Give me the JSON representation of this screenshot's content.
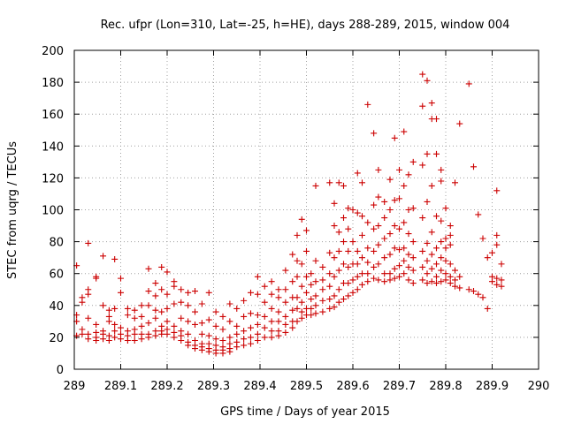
{
  "chart_data": {
    "type": "scatter",
    "title": "Rec. ufpr (Lon=310, Lat=-25, h=HE), days 288-289, 2015, window 004",
    "xlabel": "GPS time / Days of year 2015",
    "ylabel": "STEC from uqrg / TECUs",
    "xlim": [
      289,
      290
    ],
    "ylim": [
      0,
      200
    ],
    "x_ticks": [
      "289",
      "289.1",
      "289.2",
      "289.3",
      "289.4",
      "289.5",
      "289.6",
      "289.7",
      "289.8",
      "289.9",
      "290"
    ],
    "y_ticks": [
      "0",
      "20",
      "40",
      "60",
      "80",
      "100",
      "120",
      "140",
      "160",
      "180",
      "200"
    ],
    "grid": true,
    "marker": "plus",
    "color": "#cc0000",
    "points": [
      [
        289.005,
        65
      ],
      [
        289.005,
        34
      ],
      [
        289.005,
        30
      ],
      [
        289.005,
        21
      ],
      [
        289.017,
        45
      ],
      [
        289.017,
        42
      ],
      [
        289.017,
        25
      ],
      [
        289.017,
        22
      ],
      [
        289.03,
        79
      ],
      [
        289.03,
        50
      ],
      [
        289.03,
        47
      ],
      [
        289.03,
        32
      ],
      [
        289.03,
        22
      ],
      [
        289.03,
        19
      ],
      [
        289.047,
        58
      ],
      [
        289.047,
        57
      ],
      [
        289.047,
        28
      ],
      [
        289.047,
        23
      ],
      [
        289.047,
        20
      ],
      [
        289.047,
        18
      ],
      [
        289.062,
        71
      ],
      [
        289.062,
        40
      ],
      [
        289.062,
        24
      ],
      [
        289.062,
        22
      ],
      [
        289.062,
        19
      ],
      [
        289.075,
        37
      ],
      [
        289.075,
        33
      ],
      [
        289.075,
        30
      ],
      [
        289.075,
        21
      ],
      [
        289.075,
        18
      ],
      [
        289.087,
        69
      ],
      [
        289.087,
        38
      ],
      [
        289.087,
        28
      ],
      [
        289.087,
        24
      ],
      [
        289.087,
        20
      ],
      [
        289.1,
        57
      ],
      [
        289.1,
        48
      ],
      [
        289.1,
        26
      ],
      [
        289.1,
        22
      ],
      [
        289.1,
        19
      ],
      [
        289.115,
        38
      ],
      [
        289.115,
        34
      ],
      [
        289.115,
        24
      ],
      [
        289.115,
        21
      ],
      [
        289.115,
        18
      ],
      [
        289.13,
        37
      ],
      [
        289.13,
        32
      ],
      [
        289.13,
        25
      ],
      [
        289.13,
        22
      ],
      [
        289.13,
        18
      ],
      [
        289.145,
        40
      ],
      [
        289.145,
        33
      ],
      [
        289.145,
        27
      ],
      [
        289.145,
        22
      ],
      [
        289.145,
        19
      ],
      [
        289.16,
        63
      ],
      [
        289.16,
        49
      ],
      [
        289.16,
        40
      ],
      [
        289.16,
        29
      ],
      [
        289.16,
        22
      ],
      [
        289.16,
        20
      ],
      [
        289.175,
        54
      ],
      [
        289.175,
        46
      ],
      [
        289.175,
        37
      ],
      [
        289.175,
        32
      ],
      [
        289.175,
        24
      ],
      [
        289.175,
        21
      ],
      [
        289.188,
        64
      ],
      [
        289.188,
        50
      ],
      [
        289.188,
        36
      ],
      [
        289.188,
        27
      ],
      [
        289.188,
        24
      ],
      [
        289.188,
        22
      ],
      [
        289.2,
        61
      ],
      [
        289.2,
        47
      ],
      [
        289.2,
        38
      ],
      [
        289.2,
        30
      ],
      [
        289.2,
        25
      ],
      [
        289.2,
        22
      ],
      [
        289.215,
        55
      ],
      [
        289.215,
        52
      ],
      [
        289.215,
        41
      ],
      [
        289.215,
        27
      ],
      [
        289.215,
        23
      ],
      [
        289.215,
        20
      ],
      [
        289.23,
        50
      ],
      [
        289.23,
        42
      ],
      [
        289.23,
        32
      ],
      [
        289.23,
        24
      ],
      [
        289.23,
        21
      ],
      [
        289.23,
        18
      ],
      [
        289.245,
        48
      ],
      [
        289.245,
        40
      ],
      [
        289.245,
        30
      ],
      [
        289.245,
        22
      ],
      [
        289.245,
        17
      ],
      [
        289.245,
        15
      ],
      [
        289.26,
        49
      ],
      [
        289.26,
        36
      ],
      [
        289.26,
        28
      ],
      [
        289.26,
        18
      ],
      [
        289.26,
        15
      ],
      [
        289.26,
        13
      ],
      [
        289.275,
        41
      ],
      [
        289.275,
        29
      ],
      [
        289.275,
        22
      ],
      [
        289.275,
        16
      ],
      [
        289.275,
        14
      ],
      [
        289.275,
        12
      ],
      [
        289.29,
        48
      ],
      [
        289.29,
        31
      ],
      [
        289.29,
        21
      ],
      [
        289.29,
        16
      ],
      [
        289.29,
        13
      ],
      [
        289.29,
        11
      ],
      [
        289.305,
        36
      ],
      [
        289.305,
        27
      ],
      [
        289.305,
        19
      ],
      [
        289.305,
        15
      ],
      [
        289.305,
        12
      ],
      [
        289.305,
        10
      ],
      [
        289.32,
        33
      ],
      [
        289.32,
        25
      ],
      [
        289.32,
        18
      ],
      [
        289.32,
        14
      ],
      [
        289.32,
        12
      ],
      [
        289.32,
        10
      ],
      [
        289.335,
        41
      ],
      [
        289.335,
        30
      ],
      [
        289.335,
        20
      ],
      [
        289.335,
        16
      ],
      [
        289.335,
        13
      ],
      [
        289.335,
        11
      ],
      [
        289.35,
        38
      ],
      [
        289.35,
        27
      ],
      [
        289.35,
        22
      ],
      [
        289.35,
        17
      ],
      [
        289.35,
        14
      ],
      [
        289.365,
        43
      ],
      [
        289.365,
        33
      ],
      [
        289.365,
        24
      ],
      [
        289.365,
        19
      ],
      [
        289.365,
        15
      ],
      [
        289.38,
        48
      ],
      [
        289.38,
        35
      ],
      [
        289.38,
        26
      ],
      [
        289.38,
        20
      ],
      [
        289.38,
        16
      ],
      [
        289.395,
        58
      ],
      [
        289.395,
        47
      ],
      [
        289.395,
        34
      ],
      [
        289.395,
        28
      ],
      [
        289.395,
        22
      ],
      [
        289.395,
        18
      ],
      [
        289.41,
        52
      ],
      [
        289.41,
        42
      ],
      [
        289.41,
        33
      ],
      [
        289.41,
        26
      ],
      [
        289.41,
        20
      ],
      [
        289.425,
        55
      ],
      [
        289.425,
        47
      ],
      [
        289.425,
        38
      ],
      [
        289.425,
        30
      ],
      [
        289.425,
        24
      ],
      [
        289.425,
        20
      ],
      [
        289.44,
        50
      ],
      [
        289.44,
        45
      ],
      [
        289.44,
        36
      ],
      [
        289.44,
        30
      ],
      [
        289.44,
        24
      ],
      [
        289.44,
        21
      ],
      [
        289.455,
        62
      ],
      [
        289.455,
        50
      ],
      [
        289.455,
        42
      ],
      [
        289.455,
        33
      ],
      [
        289.455,
        28
      ],
      [
        289.455,
        23
      ],
      [
        289.47,
        72
      ],
      [
        289.47,
        55
      ],
      [
        289.47,
        45
      ],
      [
        289.47,
        37
      ],
      [
        289.47,
        30
      ],
      [
        289.47,
        26
      ],
      [
        289.48,
        84
      ],
      [
        289.48,
        68
      ],
      [
        289.48,
        58
      ],
      [
        289.48,
        45
      ],
      [
        289.48,
        38
      ],
      [
        289.48,
        30
      ],
      [
        289.49,
        94
      ],
      [
        289.49,
        66
      ],
      [
        289.49,
        52
      ],
      [
        289.49,
        42
      ],
      [
        289.49,
        36
      ],
      [
        289.49,
        32
      ],
      [
        289.5,
        87
      ],
      [
        289.5,
        74
      ],
      [
        289.5,
        58
      ],
      [
        289.5,
        48
      ],
      [
        289.5,
        38
      ],
      [
        289.5,
        34
      ],
      [
        289.51,
        60
      ],
      [
        289.51,
        53
      ],
      [
        289.51,
        44
      ],
      [
        289.51,
        38
      ],
      [
        289.51,
        34
      ],
      [
        289.52,
        115
      ],
      [
        289.52,
        68
      ],
      [
        289.52,
        55
      ],
      [
        289.52,
        46
      ],
      [
        289.52,
        40
      ],
      [
        289.52,
        35
      ],
      [
        289.535,
        64
      ],
      [
        289.535,
        56
      ],
      [
        289.535,
        50
      ],
      [
        289.535,
        43
      ],
      [
        289.535,
        36
      ],
      [
        289.55,
        117
      ],
      [
        289.55,
        73
      ],
      [
        289.55,
        60
      ],
      [
        289.55,
        52
      ],
      [
        289.55,
        44
      ],
      [
        289.55,
        38
      ],
      [
        289.56,
        104
      ],
      [
        289.56,
        90
      ],
      [
        289.56,
        70
      ],
      [
        289.56,
        58
      ],
      [
        289.56,
        46
      ],
      [
        289.56,
        39
      ],
      [
        289.57,
        117
      ],
      [
        289.57,
        86
      ],
      [
        289.57,
        74
      ],
      [
        289.57,
        62
      ],
      [
        289.57,
        50
      ],
      [
        289.57,
        42
      ],
      [
        289.58,
        115
      ],
      [
        289.58,
        95
      ],
      [
        289.58,
        80
      ],
      [
        289.58,
        66
      ],
      [
        289.58,
        54
      ],
      [
        289.58,
        44
      ],
      [
        289.59,
        101
      ],
      [
        289.59,
        88
      ],
      [
        289.59,
        74
      ],
      [
        289.59,
        64
      ],
      [
        289.59,
        54
      ],
      [
        289.59,
        46
      ],
      [
        289.6,
        100
      ],
      [
        289.6,
        80
      ],
      [
        289.6,
        66
      ],
      [
        289.6,
        56
      ],
      [
        289.6,
        48
      ],
      [
        289.61,
        123
      ],
      [
        289.61,
        98
      ],
      [
        289.61,
        74
      ],
      [
        289.61,
        66
      ],
      [
        289.61,
        58
      ],
      [
        289.61,
        50
      ],
      [
        289.62,
        117
      ],
      [
        289.62,
        96
      ],
      [
        289.62,
        84
      ],
      [
        289.62,
        70
      ],
      [
        289.62,
        60
      ],
      [
        289.62,
        53
      ],
      [
        289.632,
        166
      ],
      [
        289.632,
        92
      ],
      [
        289.632,
        76
      ],
      [
        289.632,
        67
      ],
      [
        289.632,
        60
      ],
      [
        289.632,
        55
      ],
      [
        289.645,
        148
      ],
      [
        289.645,
        103
      ],
      [
        289.645,
        88
      ],
      [
        289.645,
        74
      ],
      [
        289.645,
        64
      ],
      [
        289.645,
        57
      ],
      [
        289.655,
        125
      ],
      [
        289.655,
        108
      ],
      [
        289.655,
        90
      ],
      [
        289.655,
        78
      ],
      [
        289.655,
        66
      ],
      [
        289.655,
        56
      ],
      [
        289.668,
        105
      ],
      [
        289.668,
        95
      ],
      [
        289.668,
        82
      ],
      [
        289.668,
        70
      ],
      [
        289.668,
        60
      ],
      [
        289.668,
        55
      ],
      [
        289.68,
        119
      ],
      [
        289.68,
        100
      ],
      [
        289.68,
        85
      ],
      [
        289.68,
        72
      ],
      [
        289.68,
        60
      ],
      [
        289.68,
        56
      ],
      [
        289.69,
        145
      ],
      [
        289.69,
        106
      ],
      [
        289.69,
        90
      ],
      [
        289.69,
        76
      ],
      [
        289.69,
        63
      ],
      [
        289.69,
        57
      ],
      [
        289.7,
        125
      ],
      [
        289.7,
        107
      ],
      [
        289.7,
        88
      ],
      [
        289.7,
        75
      ],
      [
        289.7,
        65
      ],
      [
        289.7,
        58
      ],
      [
        289.71,
        149
      ],
      [
        289.71,
        115
      ],
      [
        289.71,
        92
      ],
      [
        289.71,
        76
      ],
      [
        289.71,
        68
      ],
      [
        289.71,
        60
      ],
      [
        289.72,
        122
      ],
      [
        289.72,
        100
      ],
      [
        289.72,
        85
      ],
      [
        289.72,
        72
      ],
      [
        289.72,
        64
      ],
      [
        289.72,
        56
      ],
      [
        289.73,
        130
      ],
      [
        289.73,
        101
      ],
      [
        289.73,
        80
      ],
      [
        289.73,
        70
      ],
      [
        289.73,
        62
      ],
      [
        289.73,
        54
      ],
      [
        289.75,
        185
      ],
      [
        289.75,
        165
      ],
      [
        289.75,
        128
      ],
      [
        289.75,
        95
      ],
      [
        289.75,
        74
      ],
      [
        289.75,
        64
      ],
      [
        289.75,
        56
      ],
      [
        289.76,
        181
      ],
      [
        289.76,
        135
      ],
      [
        289.76,
        105
      ],
      [
        289.76,
        79
      ],
      [
        289.76,
        68
      ],
      [
        289.76,
        60
      ],
      [
        289.76,
        54
      ],
      [
        289.77,
        167
      ],
      [
        289.77,
        157
      ],
      [
        289.77,
        115
      ],
      [
        289.77,
        86
      ],
      [
        289.77,
        72
      ],
      [
        289.77,
        63
      ],
      [
        289.77,
        55
      ],
      [
        289.78,
        157
      ],
      [
        289.78,
        135
      ],
      [
        289.78,
        96
      ],
      [
        289.78,
        76
      ],
      [
        289.78,
        66
      ],
      [
        289.78,
        58
      ],
      [
        289.78,
        54
      ],
      [
        289.79,
        125
      ],
      [
        289.79,
        118
      ],
      [
        289.79,
        93
      ],
      [
        289.79,
        80
      ],
      [
        289.79,
        70
      ],
      [
        289.79,
        62
      ],
      [
        289.79,
        55
      ],
      [
        289.8,
        101
      ],
      [
        289.8,
        82
      ],
      [
        289.8,
        76
      ],
      [
        289.8,
        68
      ],
      [
        289.8,
        60
      ],
      [
        289.8,
        56
      ],
      [
        289.81,
        90
      ],
      [
        289.81,
        84
      ],
      [
        289.81,
        78
      ],
      [
        289.81,
        66
      ],
      [
        289.81,
        58
      ],
      [
        289.81,
        54
      ],
      [
        289.82,
        117
      ],
      [
        289.82,
        62
      ],
      [
        289.82,
        56
      ],
      [
        289.82,
        52
      ],
      [
        289.83,
        154
      ],
      [
        289.83,
        58
      ],
      [
        289.83,
        51
      ],
      [
        289.85,
        179
      ],
      [
        289.85,
        50
      ],
      [
        289.86,
        127
      ],
      [
        289.86,
        49
      ],
      [
        289.87,
        97
      ],
      [
        289.87,
        47
      ],
      [
        289.88,
        82
      ],
      [
        289.88,
        45
      ],
      [
        289.89,
        70
      ],
      [
        289.89,
        38
      ],
      [
        289.9,
        73
      ],
      [
        289.9,
        58
      ],
      [
        289.9,
        55
      ],
      [
        289.91,
        112
      ],
      [
        289.91,
        84
      ],
      [
        289.91,
        78
      ],
      [
        289.91,
        57
      ],
      [
        289.91,
        53
      ],
      [
        289.92,
        66
      ],
      [
        289.92,
        56
      ],
      [
        289.92,
        52
      ]
    ]
  }
}
